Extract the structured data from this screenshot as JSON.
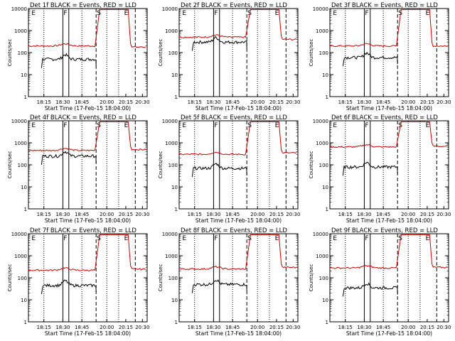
{
  "chart_data": {
    "type": "line",
    "ylabel": "Counts/sec",
    "xlabel": "Start Time (17-Feb-15 18:04:00)",
    "xticks": [
      "18:15",
      "18:30",
      "18:45",
      "20:00",
      "20:15",
      "20:30"
    ],
    "ylim": [
      1,
      10000
    ],
    "yscale": "log",
    "yticks": [
      "1",
      "10",
      "100",
      "1000",
      "10000"
    ],
    "marker_labels": [
      "E",
      "F",
      "S",
      "E"
    ],
    "colors": {
      "events": "#000000",
      "lld": "#cc0000"
    },
    "panels": [
      {
        "title": "Det 1f BLACK = Events, RED = LLD",
        "events": 50,
        "lld": 200,
        "after": 180
      },
      {
        "title": "Det 2f BLACK = Events, RED = LLD",
        "events": 300,
        "lld": 500,
        "after": 400
      },
      {
        "title": "Det 3f BLACK = Events, RED = LLD",
        "events": 60,
        "lld": 200,
        "after": 200
      },
      {
        "title": "Det 4f BLACK = Events, RED = LLD",
        "events": 250,
        "lld": 450,
        "after": 500
      },
      {
        "title": "Det 5f BLACK = Events, RED = LLD",
        "events": 70,
        "lld": 300,
        "after": 350
      },
      {
        "title": "Det 6f BLACK = Events, RED = LLD",
        "events": 80,
        "lld": 650,
        "after": 700
      },
      {
        "title": "Det 7f BLACK = Events, RED = LLD",
        "events": 45,
        "lld": 220,
        "after": 250
      },
      {
        "title": "Det 8f BLACK = Events, RED = LLD",
        "events": 50,
        "lld": 250,
        "after": 300
      },
      {
        "title": "Det 9f BLACK = Events, RED = LLD",
        "events": 35,
        "lld": 280,
        "after": 300
      }
    ]
  }
}
